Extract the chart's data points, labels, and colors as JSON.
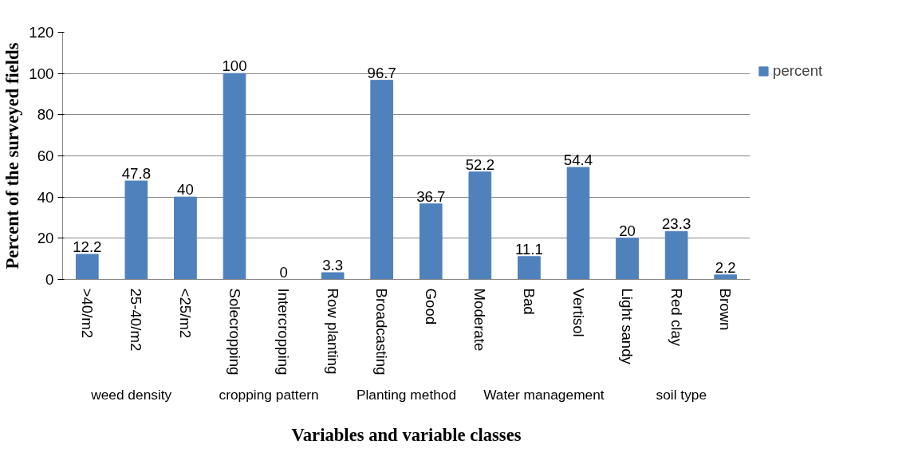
{
  "chart_data": {
    "type": "bar",
    "ylabel": "Percent of the surveyed fields",
    "xlabel": "Variables and variable classes",
    "categories": [
      ">40/m2",
      "25-40/m2",
      "<25/m2",
      "Solecropping",
      "Intercropping",
      "Row planting",
      "Broadcasting",
      "Good",
      "Moderate",
      "Bad",
      "Vertisol",
      "Light sandy",
      "Red clay",
      "Brown"
    ],
    "series": [
      {
        "name": "percent",
        "color": "#4f81bd",
        "values": [
          12.2,
          47.8,
          40,
          100,
          0,
          3.3,
          96.7,
          36.7,
          52.2,
          11.1,
          54.4,
          20,
          23.3,
          2.2
        ]
      }
    ],
    "annotations": [
      "weed density",
      "cropping pattern",
      "Planting method",
      "Water management",
      "soil type"
    ],
    "ylim": [
      0,
      120
    ],
    "yticks": [
      0,
      20,
      40,
      60,
      80,
      100,
      120
    ],
    "grid": "y",
    "legend": "right",
    "data_labels": true
  }
}
